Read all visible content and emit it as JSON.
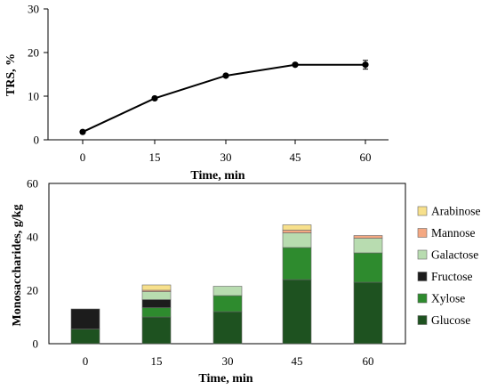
{
  "colors": {
    "axis": "#000000",
    "line": "#000000",
    "Glucose": "#1e5220",
    "Xylose": "#2e8b2e",
    "Fructose": "#1c1c1c",
    "Galactose": "#b8dcb0",
    "Mannose": "#f4a882",
    "Arabinose": "#f7e08c",
    "bar_outline": "#666666"
  },
  "chart_data": [
    {
      "type": "line",
      "xlabel": "Time, min",
      "ylabel": "TRS, %",
      "x": [
        0,
        15,
        30,
        45,
        60
      ],
      "x_ticks": [
        "0",
        "15",
        "30",
        "45",
        "60"
      ],
      "y_ticks": [
        "0",
        "10",
        "20",
        "30"
      ],
      "ylim": [
        0,
        30
      ],
      "series": [
        {
          "values": [
            1.8,
            9.5,
            14.7,
            17.2,
            17.2
          ],
          "errors": [
            0,
            0,
            0,
            0,
            1.0
          ]
        }
      ],
      "grid": false
    },
    {
      "type": "bar",
      "stacked": true,
      "xlabel": "Time, min",
      "ylabel": "Monosaccharides, g/kg",
      "categories": [
        "0",
        "15",
        "30",
        "45",
        "60"
      ],
      "y_ticks": [
        "0",
        "20",
        "40",
        "60"
      ],
      "ylim": [
        0,
        60
      ],
      "legend_position": "right",
      "legend_order": [
        "Arabinose",
        "Mannose",
        "Galactose",
        "Fructose",
        "Xylose",
        "Glucose"
      ],
      "series": [
        {
          "name": "Glucose",
          "values": [
            5.5,
            10,
            12,
            24,
            23
          ]
        },
        {
          "name": "Xylose",
          "values": [
            0,
            3.5,
            6,
            12,
            11
          ]
        },
        {
          "name": "Fructose",
          "values": [
            7.5,
            3,
            0,
            0,
            0
          ]
        },
        {
          "name": "Galactose",
          "values": [
            0,
            3,
            3.5,
            5.5,
            5.5
          ]
        },
        {
          "name": "Mannose",
          "values": [
            0,
            0.5,
            0,
            1,
            1
          ]
        },
        {
          "name": "Arabinose",
          "values": [
            0,
            2,
            0,
            2,
            0
          ]
        }
      ],
      "grid": false
    }
  ]
}
